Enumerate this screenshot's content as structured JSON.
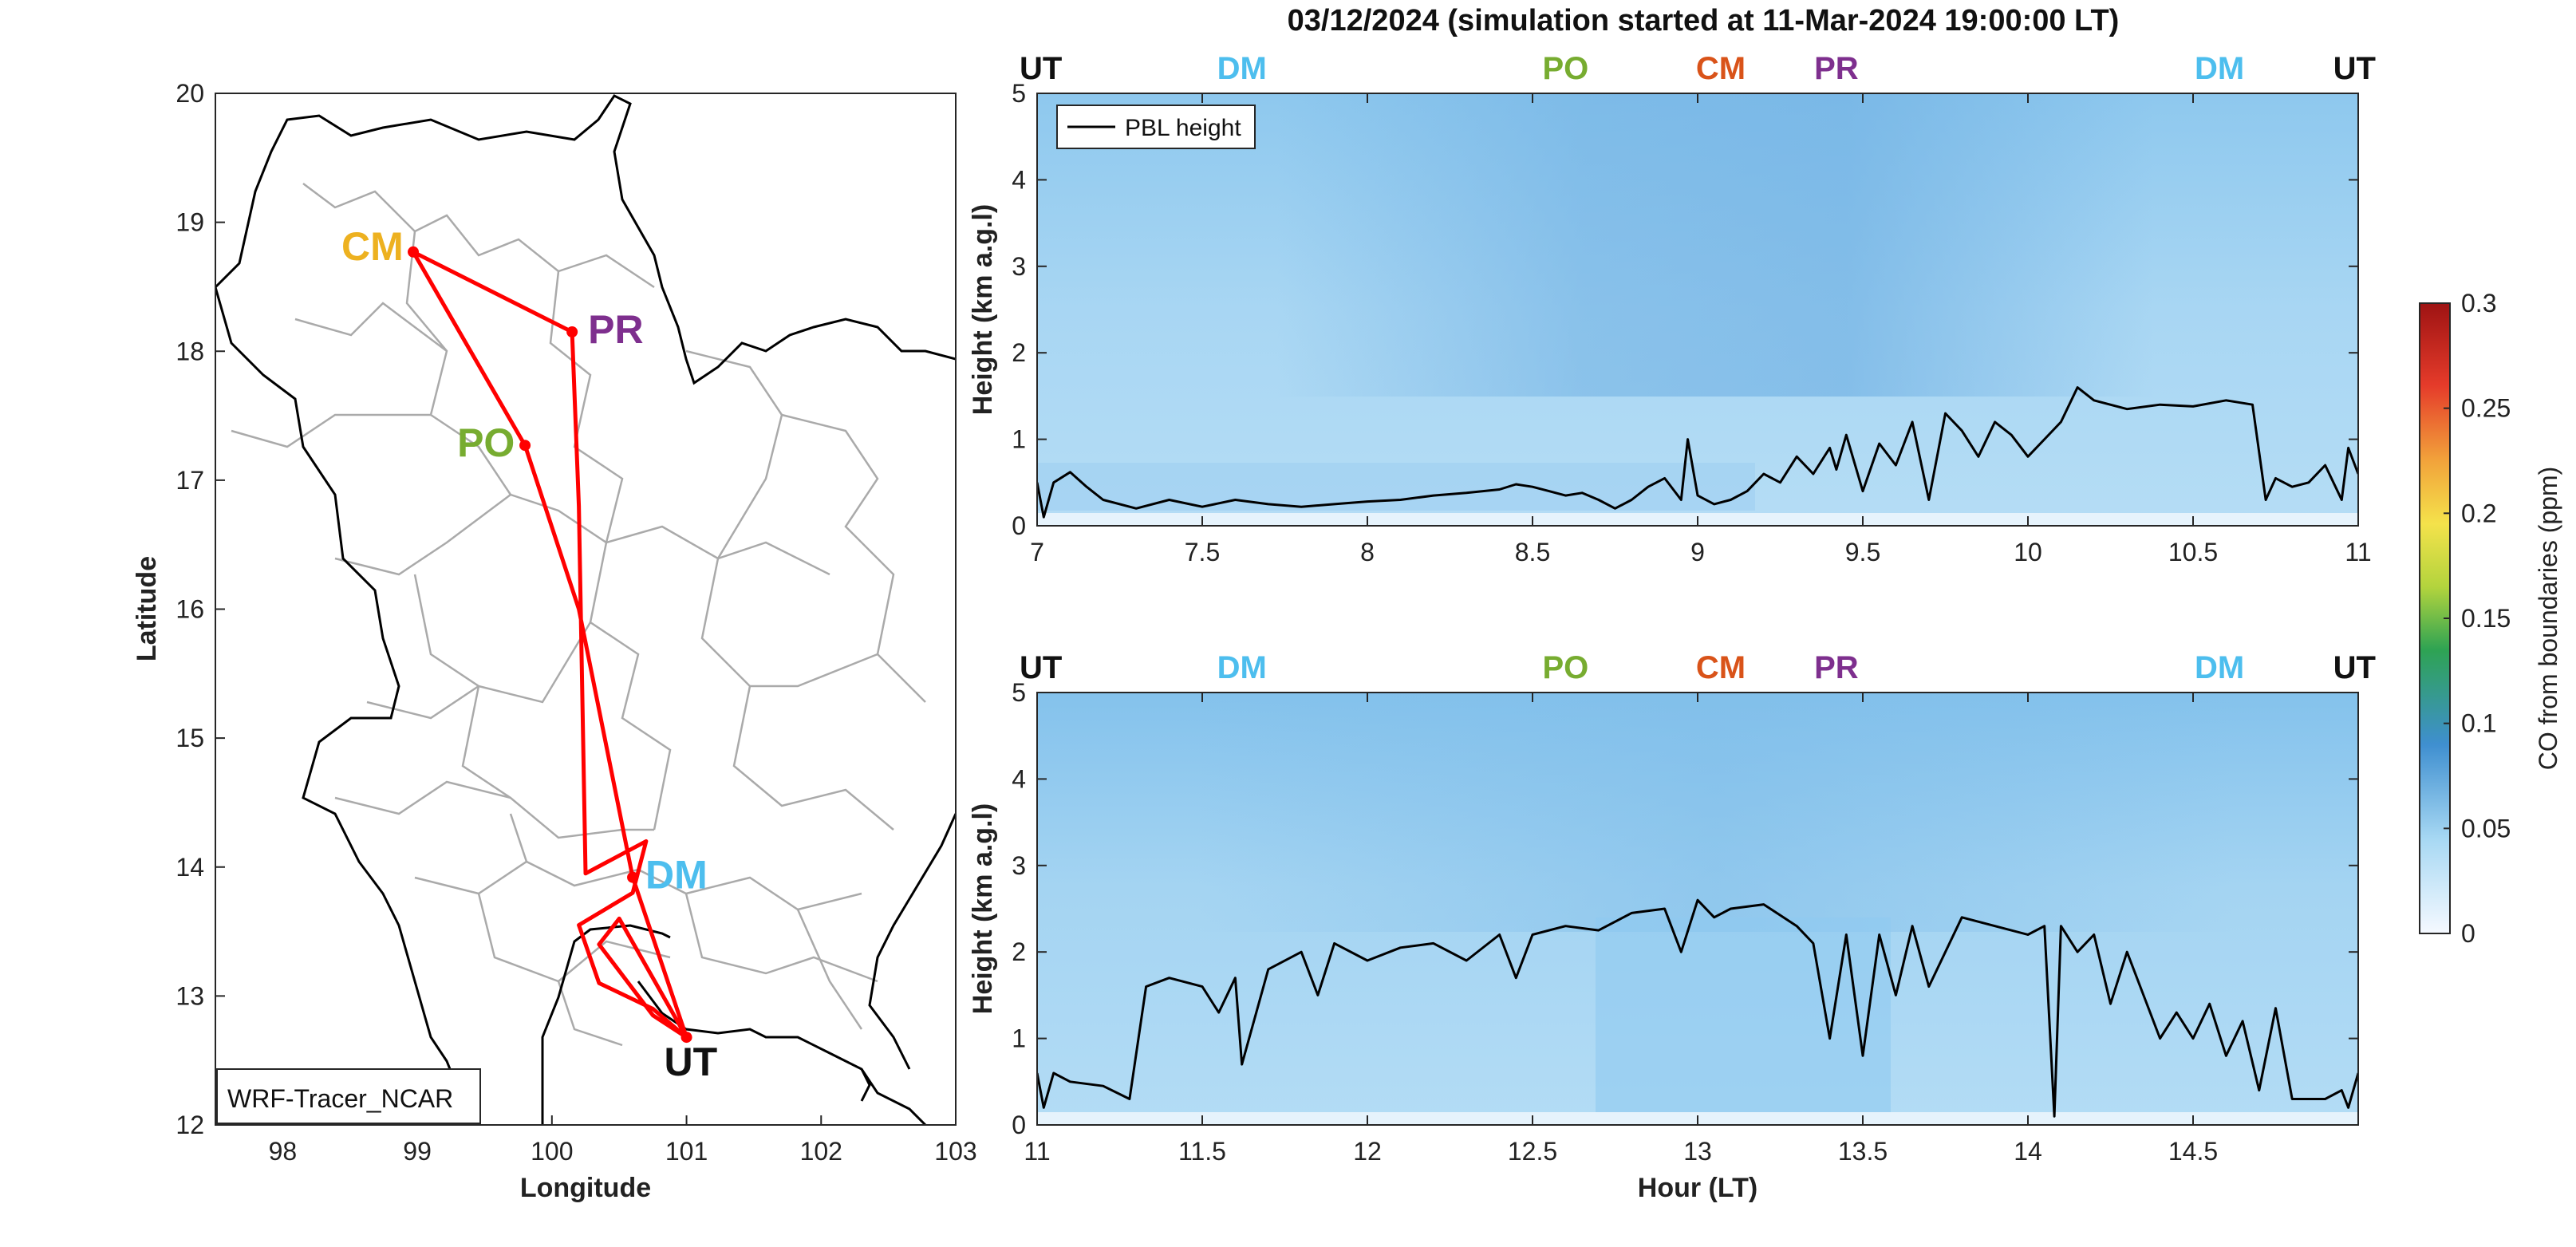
{
  "figure": {
    "title": "03/12/2024 (simulation started at 11-Mar-2024 19:00:00 LT)",
    "colors": {
      "UT": "#111111",
      "DM": "#4DBEEE",
      "PO": "#77AC30",
      "CM": "#D95319",
      "PR": "#7E2F8E",
      "CM_map": "#EDB120",
      "route": "#FF0000",
      "border": "#000000",
      "province": "#AAAAAA"
    }
  },
  "chart_data": [
    {
      "type": "map",
      "xlabel": "Longitude",
      "ylabel": "Latitude",
      "xlim": [
        97.5,
        103
      ],
      "ylim": [
        12,
        20
      ],
      "xticks": [
        "98",
        "99",
        "100",
        "101",
        "102",
        "103"
      ],
      "yticks": [
        "12",
        "13",
        "14",
        "15",
        "16",
        "17",
        "18",
        "19",
        "20"
      ],
      "model_label": "WRF-Tracer_NCAR",
      "sites": [
        {
          "name": "CM",
          "lon": 98.97,
          "lat": 18.77,
          "label_color": "#EDB120"
        },
        {
          "name": "PR",
          "lon": 100.15,
          "lat": 18.15,
          "label_color": "#7E2F8E"
        },
        {
          "name": "PO",
          "lon": 99.8,
          "lat": 17.27,
          "label_color": "#77AC30"
        },
        {
          "name": "DM",
          "lon": 100.6,
          "lat": 13.92,
          "label_color": "#4DBEEE"
        },
        {
          "name": "UT",
          "lon": 101.0,
          "lat": 12.68,
          "label_color": "#111111"
        }
      ],
      "flight_track": [
        [
          101.0,
          12.68
        ],
        [
          100.6,
          13.92
        ],
        [
          100.2,
          16.0
        ],
        [
          99.8,
          17.27
        ],
        [
          98.97,
          18.77
        ],
        [
          100.15,
          18.15
        ],
        [
          100.2,
          16.8
        ],
        [
          100.25,
          13.95
        ],
        [
          100.7,
          14.2
        ],
        [
          100.6,
          13.8
        ],
        [
          100.2,
          13.55
        ],
        [
          100.35,
          13.1
        ],
        [
          100.75,
          12.9
        ],
        [
          101.0,
          12.68
        ],
        [
          100.75,
          12.85
        ],
        [
          100.35,
          13.4
        ],
        [
          100.5,
          13.6
        ],
        [
          101.0,
          12.68
        ]
      ]
    },
    {
      "type": "heatmap",
      "xlabel": "",
      "ylabel": "Height (km a.g.l)",
      "xlim": [
        7,
        11
      ],
      "ylim": [
        0,
        5
      ],
      "xticks": [
        "7",
        "7.5",
        "8",
        "8.5",
        "9",
        "9.5",
        "10",
        "10.5",
        "11"
      ],
      "yticks": [
        "0",
        "1",
        "2",
        "3",
        "4",
        "5"
      ],
      "legend": [
        "PBL height"
      ],
      "site_markers": [
        {
          "name": "UT",
          "hour": 7.0
        },
        {
          "name": "DM",
          "hour": 7.62
        },
        {
          "name": "PO",
          "hour": 8.6
        },
        {
          "name": "CM",
          "hour": 9.07
        },
        {
          "name": "PR",
          "hour": 9.42
        },
        {
          "name": "DM",
          "hour": 10.58
        },
        {
          "name": "UT",
          "hour": 11.0
        }
      ],
      "pbl_height": {
        "name": "PBL height",
        "x": [
          7.0,
          7.02,
          7.05,
          7.1,
          7.15,
          7.2,
          7.3,
          7.4,
          7.5,
          7.6,
          7.7,
          7.8,
          7.9,
          8.0,
          8.1,
          8.2,
          8.3,
          8.4,
          8.45,
          8.5,
          8.55,
          8.6,
          8.65,
          8.7,
          8.75,
          8.8,
          8.85,
          8.9,
          8.95,
          8.97,
          9.0,
          9.05,
          9.1,
          9.15,
          9.2,
          9.25,
          9.3,
          9.35,
          9.4,
          9.42,
          9.45,
          9.5,
          9.55,
          9.6,
          9.65,
          9.7,
          9.75,
          9.8,
          9.85,
          9.9,
          9.95,
          10.0,
          10.05,
          10.1,
          10.15,
          10.2,
          10.3,
          10.4,
          10.5,
          10.6,
          10.68,
          10.72,
          10.75,
          10.8,
          10.85,
          10.9,
          10.95,
          10.97,
          11.0
        ],
        "y": [
          0.5,
          0.1,
          0.5,
          0.62,
          0.45,
          0.3,
          0.2,
          0.3,
          0.22,
          0.3,
          0.25,
          0.22,
          0.25,
          0.28,
          0.3,
          0.35,
          0.38,
          0.42,
          0.48,
          0.45,
          0.4,
          0.35,
          0.38,
          0.3,
          0.2,
          0.3,
          0.45,
          0.55,
          0.3,
          1.0,
          0.35,
          0.25,
          0.3,
          0.4,
          0.6,
          0.5,
          0.8,
          0.6,
          0.9,
          0.65,
          1.05,
          0.4,
          0.95,
          0.7,
          1.2,
          0.3,
          1.3,
          1.1,
          0.8,
          1.2,
          1.05,
          0.8,
          1.0,
          1.2,
          1.6,
          1.45,
          1.35,
          1.4,
          1.38,
          1.45,
          1.4,
          0.3,
          0.55,
          0.45,
          0.5,
          0.7,
          0.3,
          0.9,
          0.6
        ]
      }
    },
    {
      "type": "heatmap",
      "xlabel": "Hour (LT)",
      "ylabel": "Height (km a.g.l)",
      "xlim": [
        11,
        15
      ],
      "ylim": [
        0,
        5
      ],
      "xticks": [
        "11",
        "11.5",
        "12",
        "12.5",
        "13",
        "13.5",
        "14",
        "14.5"
      ],
      "yticks": [
        "0",
        "1",
        "2",
        "3",
        "4",
        "5"
      ],
      "site_markers": [
        {
          "name": "UT",
          "hour": 11.0
        },
        {
          "name": "DM",
          "hour": 11.62
        },
        {
          "name": "PO",
          "hour": 12.6
        },
        {
          "name": "CM",
          "hour": 13.07
        },
        {
          "name": "PR",
          "hour": 13.42
        },
        {
          "name": "DM",
          "hour": 14.58
        },
        {
          "name": "UT",
          "hour": 14.97
        }
      ],
      "pbl_height": {
        "name": "PBL height",
        "x": [
          11.0,
          11.02,
          11.05,
          11.1,
          11.2,
          11.28,
          11.33,
          11.4,
          11.5,
          11.55,
          11.6,
          11.62,
          11.7,
          11.8,
          11.85,
          11.9,
          12.0,
          12.1,
          12.2,
          12.3,
          12.4,
          12.45,
          12.5,
          12.6,
          12.7,
          12.8,
          12.9,
          12.95,
          13.0,
          13.05,
          13.1,
          13.2,
          13.3,
          13.35,
          13.4,
          13.45,
          13.5,
          13.55,
          13.6,
          13.65,
          13.7,
          13.8,
          13.9,
          14.0,
          14.05,
          14.08,
          14.1,
          14.15,
          14.2,
          14.25,
          14.3,
          14.35,
          14.4,
          14.45,
          14.5,
          14.55,
          14.6,
          14.65,
          14.7,
          14.75,
          14.8,
          14.9,
          14.95,
          14.97,
          15.0
        ],
        "y": [
          0.6,
          0.2,
          0.6,
          0.5,
          0.45,
          0.3,
          1.6,
          1.7,
          1.6,
          1.3,
          1.7,
          0.7,
          1.8,
          2.0,
          1.5,
          2.1,
          1.9,
          2.05,
          2.1,
          1.9,
          2.2,
          1.7,
          2.2,
          2.3,
          2.25,
          2.45,
          2.5,
          2.0,
          2.6,
          2.4,
          2.5,
          2.55,
          2.3,
          2.1,
          1.0,
          2.2,
          0.8,
          2.2,
          1.5,
          2.3,
          1.6,
          2.4,
          2.3,
          2.2,
          2.3,
          0.1,
          2.3,
          2.0,
          2.2,
          1.4,
          2.0,
          1.5,
          1.0,
          1.3,
          1.0,
          1.4,
          0.8,
          1.2,
          0.4,
          1.35,
          0.3,
          0.3,
          0.4,
          0.2,
          0.6
        ]
      }
    },
    {
      "type": "colorbar",
      "label": "CO from boundaries (ppm)",
      "range": [
        0,
        0.3
      ],
      "ticks": [
        "0",
        "0.05",
        "0.1",
        "0.15",
        "0.2",
        "0.25",
        "0.3"
      ]
    }
  ]
}
